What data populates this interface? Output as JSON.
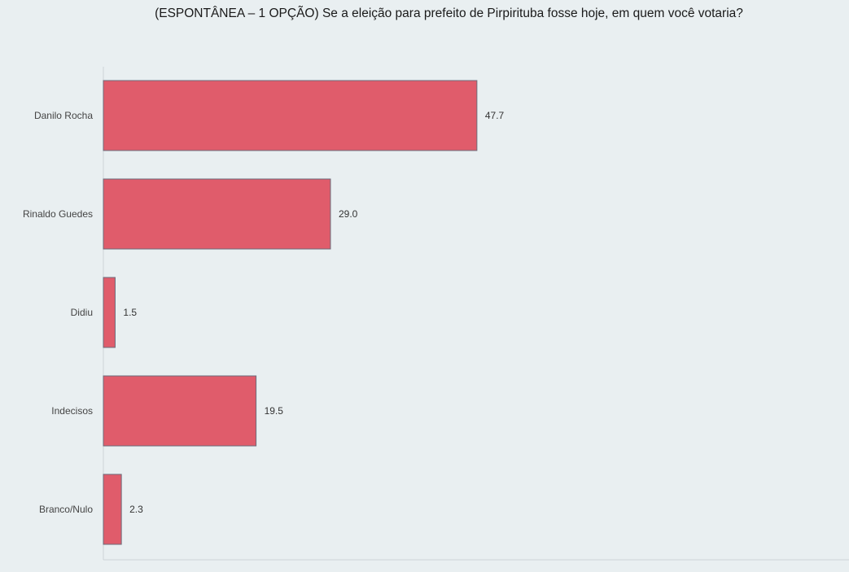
{
  "title": "(ESPONTÂNEA – 1 OPÇÃO) Se a eleição para prefeito de Pirpirituba fosse hoje, em quem você votaria?",
  "chart_data": {
    "type": "bar",
    "orientation": "horizontal",
    "title": "(ESPONTÂNEA – 1 OPÇÃO) Se a eleição para prefeito de Pirpirituba fosse hoje, em quem você votaria?",
    "categories": [
      "Danilo Rocha",
      "Rinaldo Guedes",
      "Didiu",
      "Indecisos",
      "Branco/Nulo"
    ],
    "values": [
      47.7,
      29.0,
      1.5,
      19.5,
      2.3
    ],
    "value_labels": [
      "47.7",
      "29.0",
      "1.5",
      "19.5",
      "2.3"
    ],
    "xlim": [
      0,
      95
    ],
    "grid": false,
    "bar_color": "#e05c6b",
    "bar_stroke": "#6b6b7a",
    "background": "#e9eff1",
    "axis_color": "#cdd3d6"
  }
}
